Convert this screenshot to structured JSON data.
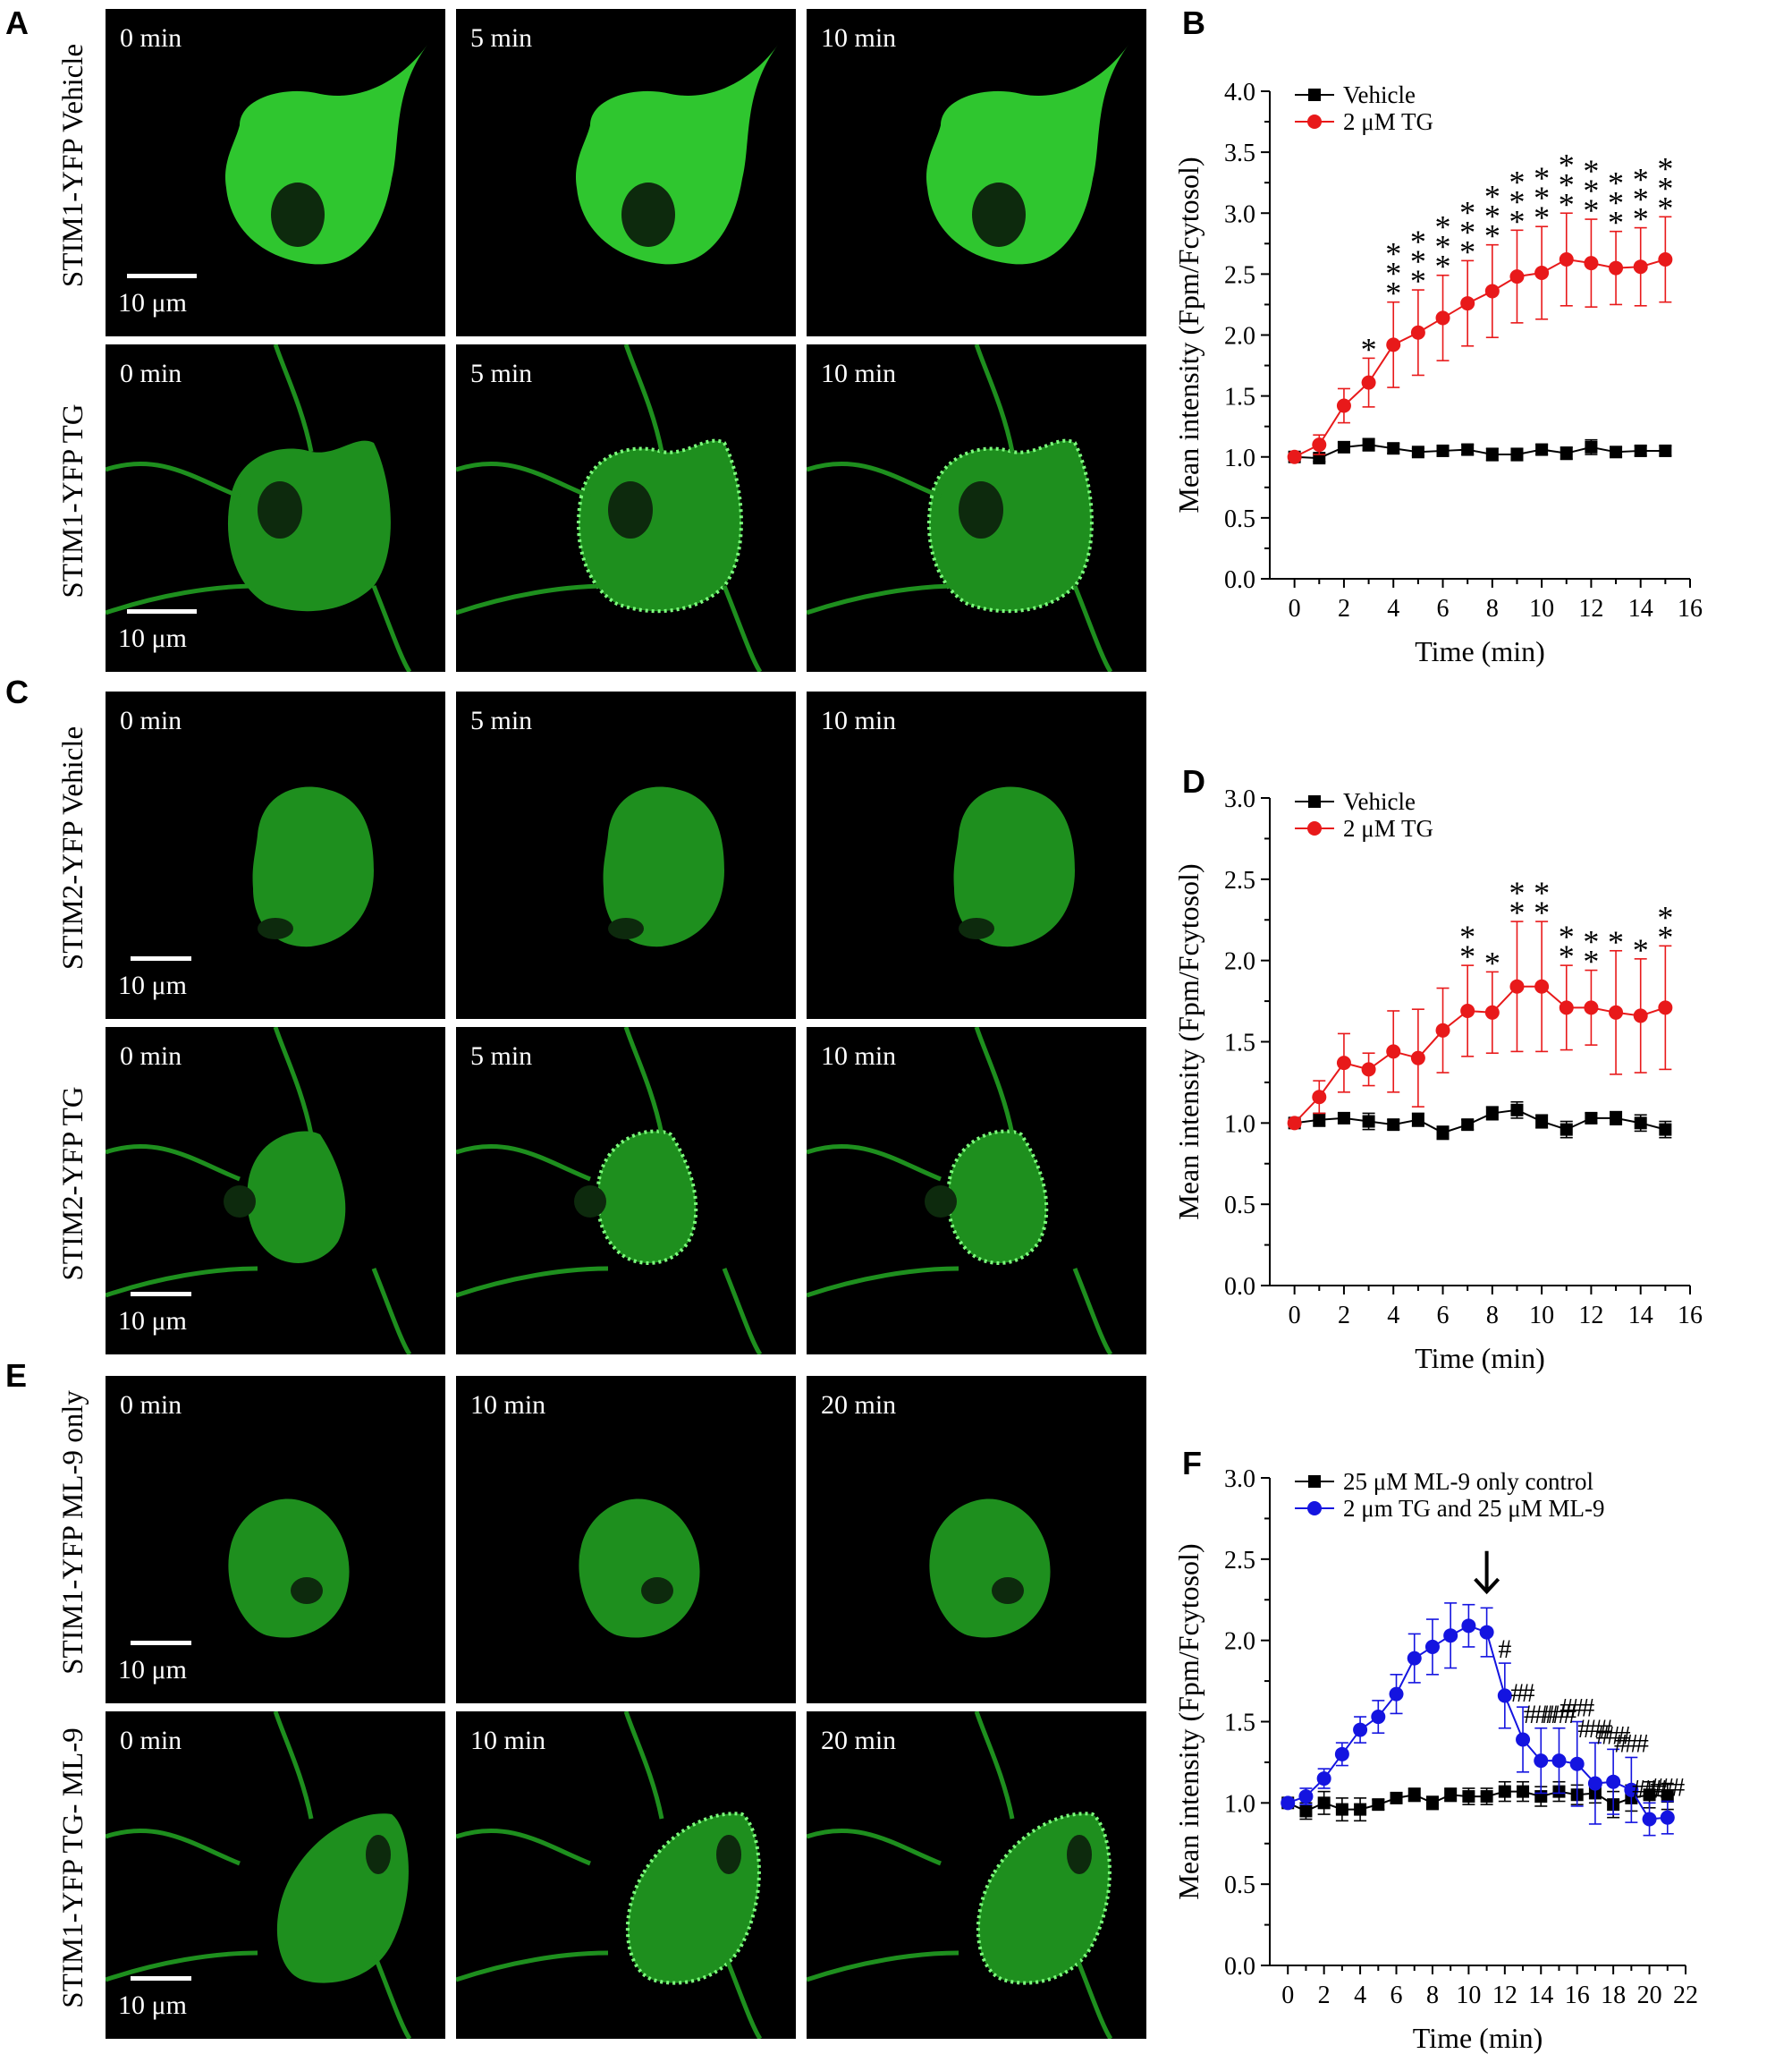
{
  "figure": {
    "panel_labels": [
      "A",
      "B",
      "C",
      "D",
      "E",
      "F"
    ],
    "scale_label": "10 μm",
    "rows": [
      {
        "label": "STIM1-YFP  Vehicle",
        "times": [
          "0 min",
          "5 min",
          "10 min"
        ]
      },
      {
        "label": "STIM1-YFP  TG",
        "times": [
          "0 min",
          "5 min",
          "10 min"
        ]
      },
      {
        "label": "STIM2-YFP  Vehicle",
        "times": [
          "0 min",
          "5 min",
          "10 min"
        ]
      },
      {
        "label": "STIM2-YFP  TG",
        "times": [
          "0 min",
          "5 min",
          "10 min"
        ]
      },
      {
        "label": "STIM1-YFP  ML-9 only",
        "times": [
          "0 min",
          "10 min",
          "20 min"
        ]
      },
      {
        "label": "STIM1-YFP  TG- ML-9",
        "times": [
          "0 min",
          "10 min",
          "20 min"
        ]
      }
    ],
    "colors": {
      "cell": "#2fc62f",
      "cell_dim": "#1e8f1e",
      "red": "#e8191a",
      "blue": "#1414e0",
      "black": "#000000"
    }
  },
  "chart_data": [
    {
      "type": "line",
      "panel": "B",
      "xlabel": "Time (min)",
      "ylabel": "Mean intensity (Fpm/Fcytosol)",
      "xlim": [
        -1,
        16
      ],
      "ylim": [
        0,
        4
      ],
      "xticks": [
        0,
        2,
        4,
        6,
        8,
        10,
        12,
        14,
        16
      ],
      "yticks": [
        0.0,
        0.5,
        1.0,
        1.5,
        2.0,
        2.5,
        3.0,
        3.5,
        4.0
      ],
      "x": [
        0,
        1,
        2,
        3,
        4,
        5,
        6,
        7,
        8,
        9,
        10,
        11,
        12,
        13,
        14,
        15
      ],
      "series": [
        {
          "name": "Vehicle",
          "color": "#000000",
          "marker": "square",
          "values": [
            1.0,
            0.99,
            1.08,
            1.1,
            1.07,
            1.04,
            1.05,
            1.06,
            1.02,
            1.02,
            1.06,
            1.03,
            1.08,
            1.04,
            1.05,
            1.05
          ],
          "errors": [
            0.02,
            0.03,
            0.04,
            0.05,
            0.04,
            0.03,
            0.04,
            0.04,
            0.05,
            0.05,
            0.04,
            0.05,
            0.06,
            0.04,
            0.04,
            0.04
          ]
        },
        {
          "name": "2 μM TG",
          "color": "#e8191a",
          "marker": "circle",
          "values": [
            1.0,
            1.1,
            1.42,
            1.61,
            1.92,
            2.02,
            2.14,
            2.26,
            2.36,
            2.48,
            2.51,
            2.62,
            2.59,
            2.55,
            2.56,
            2.62
          ],
          "errors": [
            0.02,
            0.08,
            0.14,
            0.2,
            0.35,
            0.35,
            0.35,
            0.35,
            0.38,
            0.38,
            0.38,
            0.38,
            0.36,
            0.3,
            0.32,
            0.35
          ]
        }
      ],
      "significance": [
        "",
        "",
        "",
        "*",
        "***",
        "***",
        "***",
        "***",
        "***",
        "***",
        "***",
        "***",
        "***",
        "***",
        "***",
        "***"
      ]
    },
    {
      "type": "line",
      "panel": "D",
      "xlabel": "Time (min)",
      "ylabel": "Mean intensity (Fpm/Fcytosol)",
      "xlim": [
        -1,
        16
      ],
      "ylim": [
        0,
        3
      ],
      "xticks": [
        0,
        2,
        4,
        6,
        8,
        10,
        12,
        14,
        16
      ],
      "yticks": [
        0.0,
        0.5,
        1.0,
        1.5,
        2.0,
        2.5,
        3.0
      ],
      "x": [
        0,
        1,
        2,
        3,
        4,
        5,
        6,
        7,
        8,
        9,
        10,
        11,
        12,
        13,
        14,
        15
      ],
      "series": [
        {
          "name": "Vehicle",
          "color": "#000000",
          "marker": "square",
          "values": [
            1.0,
            1.02,
            1.03,
            1.01,
            0.99,
            1.02,
            0.94,
            0.99,
            1.06,
            1.08,
            1.01,
            0.96,
            1.03,
            1.03,
            1.0,
            0.96
          ],
          "errors": [
            0.02,
            0.04,
            0.03,
            0.05,
            0.03,
            0.04,
            0.04,
            0.03,
            0.04,
            0.05,
            0.04,
            0.05,
            0.03,
            0.04,
            0.05,
            0.05
          ]
        },
        {
          "name": "2 μM TG",
          "color": "#e8191a",
          "marker": "circle",
          "values": [
            1.0,
            1.16,
            1.37,
            1.33,
            1.44,
            1.4,
            1.57,
            1.69,
            1.68,
            1.84,
            1.84,
            1.71,
            1.71,
            1.68,
            1.66,
            1.71
          ],
          "errors": [
            0.02,
            0.1,
            0.18,
            0.1,
            0.25,
            0.3,
            0.26,
            0.28,
            0.25,
            0.4,
            0.4,
            0.26,
            0.23,
            0.38,
            0.35,
            0.38
          ]
        }
      ],
      "significance": [
        "",
        "",
        "",
        "",
        "",
        "",
        "",
        "**",
        "*",
        "**",
        "**",
        "**",
        "**",
        "*",
        "*",
        "**"
      ]
    },
    {
      "type": "line",
      "panel": "F",
      "xlabel": "Time (min)",
      "ylabel": "Mean intensity (Fpm/Fcytosol)",
      "xlim": [
        -1,
        22
      ],
      "ylim": [
        0,
        3
      ],
      "xticks": [
        0,
        2,
        4,
        6,
        8,
        10,
        12,
        14,
        16,
        18,
        20,
        22
      ],
      "yticks": [
        0.0,
        0.5,
        1.0,
        1.5,
        2.0,
        2.5,
        3.0
      ],
      "x": [
        0,
        1,
        2,
        3,
        4,
        5,
        6,
        7,
        8,
        9,
        10,
        11,
        12,
        13,
        14,
        15,
        16,
        17,
        18,
        19,
        20,
        21
      ],
      "series": [
        {
          "name": "25 μM ML-9 only control",
          "color": "#000000",
          "marker": "square",
          "values": [
            1.0,
            0.95,
            1.0,
            0.96,
            0.96,
            0.99,
            1.03,
            1.05,
            1.0,
            1.05,
            1.04,
            1.04,
            1.07,
            1.07,
            1.04,
            1.07,
            1.05,
            1.06,
            0.99,
            1.03,
            1.05,
            1.04
          ],
          "errors": [
            0.02,
            0.05,
            0.07,
            0.07,
            0.07,
            0.03,
            0.03,
            0.04,
            0.04,
            0.04,
            0.05,
            0.05,
            0.06,
            0.06,
            0.06,
            0.06,
            0.06,
            0.06,
            0.08,
            0.08,
            0.08,
            0.08
          ]
        },
        {
          "name": "2 μm TG and 25 μM ML-9",
          "color": "#1414e0",
          "marker": "circle",
          "values": [
            1.0,
            1.04,
            1.15,
            1.3,
            1.45,
            1.53,
            1.67,
            1.89,
            1.96,
            2.03,
            2.09,
            2.05,
            1.66,
            1.39,
            1.26,
            1.26,
            1.24,
            1.12,
            1.13,
            1.08,
            0.9,
            0.91
          ],
          "errors": [
            0.02,
            0.05,
            0.06,
            0.07,
            0.08,
            0.1,
            0.12,
            0.15,
            0.17,
            0.2,
            0.13,
            0.15,
            0.2,
            0.2,
            0.2,
            0.2,
            0.26,
            0.25,
            0.2,
            0.2,
            0.1,
            0.1
          ]
        }
      ],
      "significance": [
        "",
        "",
        "",
        "",
        "",
        "",
        "",
        "",
        "",
        "",
        "",
        "",
        "#",
        "##",
        "###",
        "###",
        "###",
        "###",
        "###",
        "###",
        "###",
        "###"
      ],
      "annotation": "arrow at 11 min"
    }
  ]
}
